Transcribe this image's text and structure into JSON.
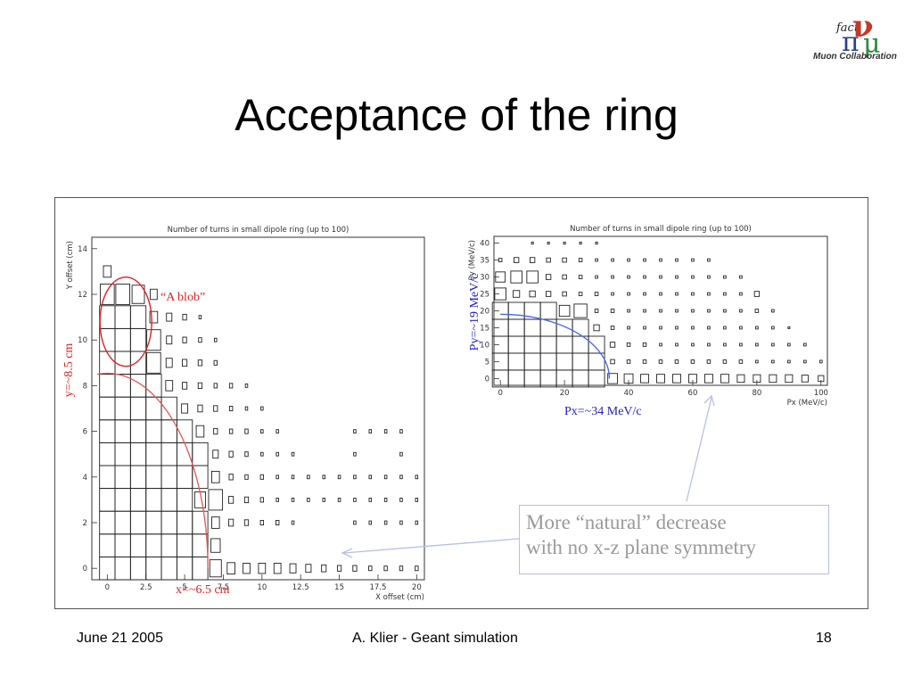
{
  "slide": {
    "title": "Acceptance of the ring",
    "footer": {
      "date": "June 21 2005",
      "center": "A. Klier - Geant simulation",
      "page": "18"
    },
    "logo": {
      "line1": "fact",
      "nu": "ν",
      "pi": "π",
      "mu": "μ",
      "line2": "Muon Collaboration"
    },
    "annotations": {
      "blob": "“A blob”",
      "y_label": "y=~8.5 cm",
      "x_label": "x=~6.5 cm",
      "py_label": "Py=~19 MeV/c",
      "px_label": "Px=~34 MeV/c",
      "note_line1": "More “natural” decrease",
      "note_line2": "with no x-z plane  symmetry"
    },
    "colors": {
      "red": "#dd2222",
      "blue": "#2222cc",
      "note": "#9a9a9a"
    }
  },
  "chart_data": [
    {
      "type": "heatmap",
      "title": "Number of turns in small dipole ring (up to 100)",
      "xlabel": "X offset (cm)",
      "ylabel": "Y offset (cm)",
      "xlim": [
        -1,
        20.5
      ],
      "ylim": [
        -0.5,
        14.5
      ],
      "x_ticks": [
        "0",
        "2.5",
        "5",
        "7.5",
        "10",
        "12.5",
        "15",
        "17.5",
        "20"
      ],
      "y_ticks": [
        "0",
        "2",
        "4",
        "6",
        "8",
        "10",
        "12",
        "14"
      ],
      "bin": {
        "dx": 1,
        "dy": 1
      },
      "rows": [
        {
          "y": 0,
          "s": [
            1,
            1,
            1,
            1,
            1,
            1,
            1,
            0.75,
            0.5,
            0.45,
            0.45,
            0.45,
            0.4,
            0.35,
            0.3,
            0.25,
            0.25,
            0.2,
            0.2,
            0.2,
            0.2
          ]
        },
        {
          "y": 1,
          "s": [
            1,
            1,
            1,
            1,
            1,
            1,
            1,
            0.6,
            0,
            0,
            0,
            0,
            0,
            0,
            0,
            0,
            0,
            0,
            0,
            0,
            0
          ]
        },
        {
          "y": 2,
          "s": [
            1,
            1,
            1,
            1,
            1,
            1,
            1,
            0.5,
            0.3,
            0.25,
            0.2,
            0.2,
            0.15,
            0,
            0,
            0,
            0.15,
            0.15,
            0.15,
            0.15,
            0.15
          ]
        },
        {
          "y": 3,
          "s": [
            1,
            1,
            1,
            1,
            1,
            1,
            0.7,
            0.9,
            0.3,
            0.25,
            0.2,
            0.15,
            0.15,
            0.15,
            0.15,
            0.15,
            0.15,
            0.15,
            0.15,
            0.15,
            0.15
          ]
        },
        {
          "y": 4,
          "s": [
            1,
            1,
            1,
            1,
            1,
            1,
            1,
            0.5,
            0.25,
            0.2,
            0.2,
            0.15,
            0.15,
            0.15,
            0.15,
            0.15,
            0.15,
            0.15,
            0.15,
            0.15,
            0.15
          ]
        },
        {
          "y": 5,
          "s": [
            1,
            1,
            1,
            1,
            1,
            1,
            1,
            0.35,
            0.25,
            0.2,
            0.15,
            0.15,
            0.15,
            0,
            0,
            0,
            0.15,
            0,
            0,
            0.15,
            0
          ]
        },
        {
          "y": 6,
          "s": [
            1,
            1,
            1,
            1,
            1,
            1,
            0.5,
            0.25,
            0.2,
            0.2,
            0.15,
            0.15,
            0,
            0,
            0,
            0,
            0.15,
            0.15,
            0.15,
            0.15,
            0
          ]
        },
        {
          "y": 7,
          "s": [
            1,
            1,
            1,
            1,
            1,
            0.4,
            0.3,
            0.25,
            0.2,
            0.15,
            0.15,
            0,
            0,
            0,
            0,
            0,
            0,
            0,
            0,
            0,
            0
          ]
        },
        {
          "y": 8,
          "s": [
            1,
            1,
            1,
            1,
            0.45,
            0.3,
            0.25,
            0.2,
            0.2,
            0.15,
            0,
            0,
            0,
            0,
            0,
            0,
            0,
            0,
            0,
            0,
            0
          ]
        },
        {
          "y": 9,
          "s": [
            1,
            1,
            1,
            0.9,
            0.4,
            0.3,
            0.25,
            0.2,
            0,
            0,
            0,
            0,
            0,
            0,
            0,
            0,
            0,
            0,
            0,
            0,
            0
          ]
        },
        {
          "y": 10,
          "s": [
            1,
            1,
            1,
            0.9,
            0.35,
            0.25,
            0.2,
            0.15,
            0,
            0,
            0,
            0,
            0,
            0,
            0,
            0,
            0,
            0,
            0,
            0,
            0
          ]
        },
        {
          "y": 11,
          "s": [
            1,
            1,
            1,
            0.5,
            0.35,
            0.25,
            0.15,
            0,
            0,
            0,
            0,
            0,
            0,
            0,
            0,
            0,
            0,
            0,
            0,
            0,
            0
          ]
        },
        {
          "y": 12,
          "s": [
            0.9,
            0.9,
            0.8,
            0.45,
            0,
            0,
            0,
            0,
            0,
            0,
            0,
            0,
            0,
            0,
            0,
            0,
            0,
            0,
            0,
            0,
            0
          ]
        },
        {
          "y": 13,
          "s": [
            0.5,
            0,
            0,
            0,
            0,
            0,
            0,
            0,
            0,
            0,
            0,
            0,
            0,
            0,
            0,
            0,
            0,
            0,
            0,
            0,
            0
          ]
        }
      ]
    },
    {
      "type": "heatmap",
      "title": "Number of turns in small dipole ring (up to 100)",
      "xlabel": "Px (MeV/c)",
      "ylabel": "Py (MeV/c)",
      "xlim": [
        -2,
        102
      ],
      "ylim": [
        -2,
        42
      ],
      "x_ticks": [
        "0",
        "20",
        "40",
        "60",
        "80",
        "100"
      ],
      "y_ticks": [
        "0",
        "5",
        "10",
        "15",
        "20",
        "25",
        "30",
        "35",
        "40"
      ],
      "bin": {
        "dx": 5,
        "dy": 5
      },
      "rows": [
        {
          "y": 0,
          "s": [
            1,
            1,
            1,
            1,
            1,
            1,
            1,
            0.6,
            0.55,
            0.5,
            0.5,
            0.5,
            0.5,
            0.5,
            0.5,
            0.45,
            0.45,
            0.45,
            0.45,
            0.4,
            0.35
          ]
        },
        {
          "y": 5,
          "s": [
            1,
            1,
            1,
            1,
            1,
            1,
            1,
            0.25,
            0.2,
            0.2,
            0.2,
            0.2,
            0.2,
            0.2,
            0.2,
            0.2,
            0.15,
            0.15,
            0.15,
            0.15,
            0.15
          ]
        },
        {
          "y": 10,
          "s": [
            1,
            1,
            1,
            1,
            1,
            1,
            1,
            0.3,
            0.2,
            0.2,
            0.15,
            0.15,
            0.15,
            0.15,
            0.15,
            0.15,
            0.15,
            0.15,
            0.15,
            0.15,
            0
          ]
        },
        {
          "y": 15,
          "s": [
            1,
            1,
            1,
            1,
            1,
            1,
            0.35,
            0.2,
            0.15,
            0.15,
            0.15,
            0.15,
            0.15,
            0.15,
            0.15,
            0.15,
            0.15,
            0.15,
            0.1,
            0,
            0
          ]
        },
        {
          "y": 20,
          "s": [
            1,
            1,
            1,
            1,
            0.65,
            0.8,
            0.2,
            0.2,
            0.15,
            0.15,
            0.15,
            0.15,
            0.15,
            0.15,
            0.15,
            0.15,
            0.2,
            0.15,
            0,
            0,
            0
          ]
        },
        {
          "y": 25,
          "s": [
            0.7,
            0.4,
            0.35,
            0.3,
            0.25,
            0.2,
            0.2,
            0.15,
            0.15,
            0.15,
            0.15,
            0.15,
            0.15,
            0.15,
            0.15,
            0.15,
            0.3,
            0,
            0,
            0,
            0
          ]
        },
        {
          "y": 30,
          "s": [
            0.6,
            0.7,
            0.7,
            0.3,
            0.25,
            0.2,
            0.15,
            0.15,
            0.15,
            0.15,
            0.15,
            0.15,
            0.15,
            0.15,
            0.15,
            0.15,
            0,
            0,
            0,
            0,
            0
          ]
        },
        {
          "y": 35,
          "s": [
            0.2,
            0.3,
            0.3,
            0.25,
            0.25,
            0.2,
            0.15,
            0.15,
            0.15,
            0.15,
            0.15,
            0.15,
            0.15,
            0.15,
            0,
            0,
            0,
            0,
            0,
            0,
            0
          ]
        },
        {
          "y": 40,
          "s": [
            0,
            0,
            0.12,
            0.12,
            0.12,
            0.12,
            0.12,
            0,
            0,
            0,
            0,
            0,
            0,
            0,
            0,
            0,
            0,
            0,
            0,
            0,
            0
          ]
        }
      ]
    }
  ]
}
